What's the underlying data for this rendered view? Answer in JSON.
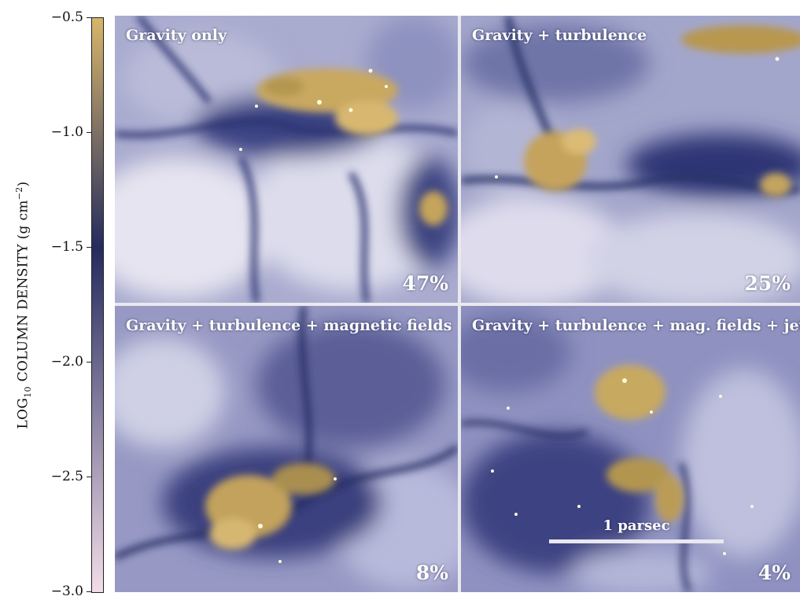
{
  "colorbar": {
    "title_prefix": "LOG",
    "title_sub": "10",
    "title_main": " COLUMN DENSITY (g cm",
    "title_sup": "−2",
    "title_suffix": ")",
    "ticks": [
      "−0.5",
      "−1.0",
      "−1.5",
      "−2.0",
      "−2.5",
      "−3.0"
    ],
    "colors": {
      "top": "#d7b66a",
      "mid": "#242b5e",
      "bottom": "#f3dde8"
    }
  },
  "panels": [
    {
      "title": "Gravity only",
      "percent": "47%"
    },
    {
      "title": "Gravity + turbulence",
      "percent": "25%"
    },
    {
      "title": "Gravity + turbulence + magnetic fields",
      "percent": "8%"
    },
    {
      "title": "Gravity + turbulence + mag. fields + jets",
      "percent": "4%"
    }
  ],
  "scalebar": {
    "label": "1 parsec"
  },
  "palette": {
    "dense": "#e8c77a",
    "filament": "#2a3170",
    "diffuse": "#c7c8e0"
  }
}
